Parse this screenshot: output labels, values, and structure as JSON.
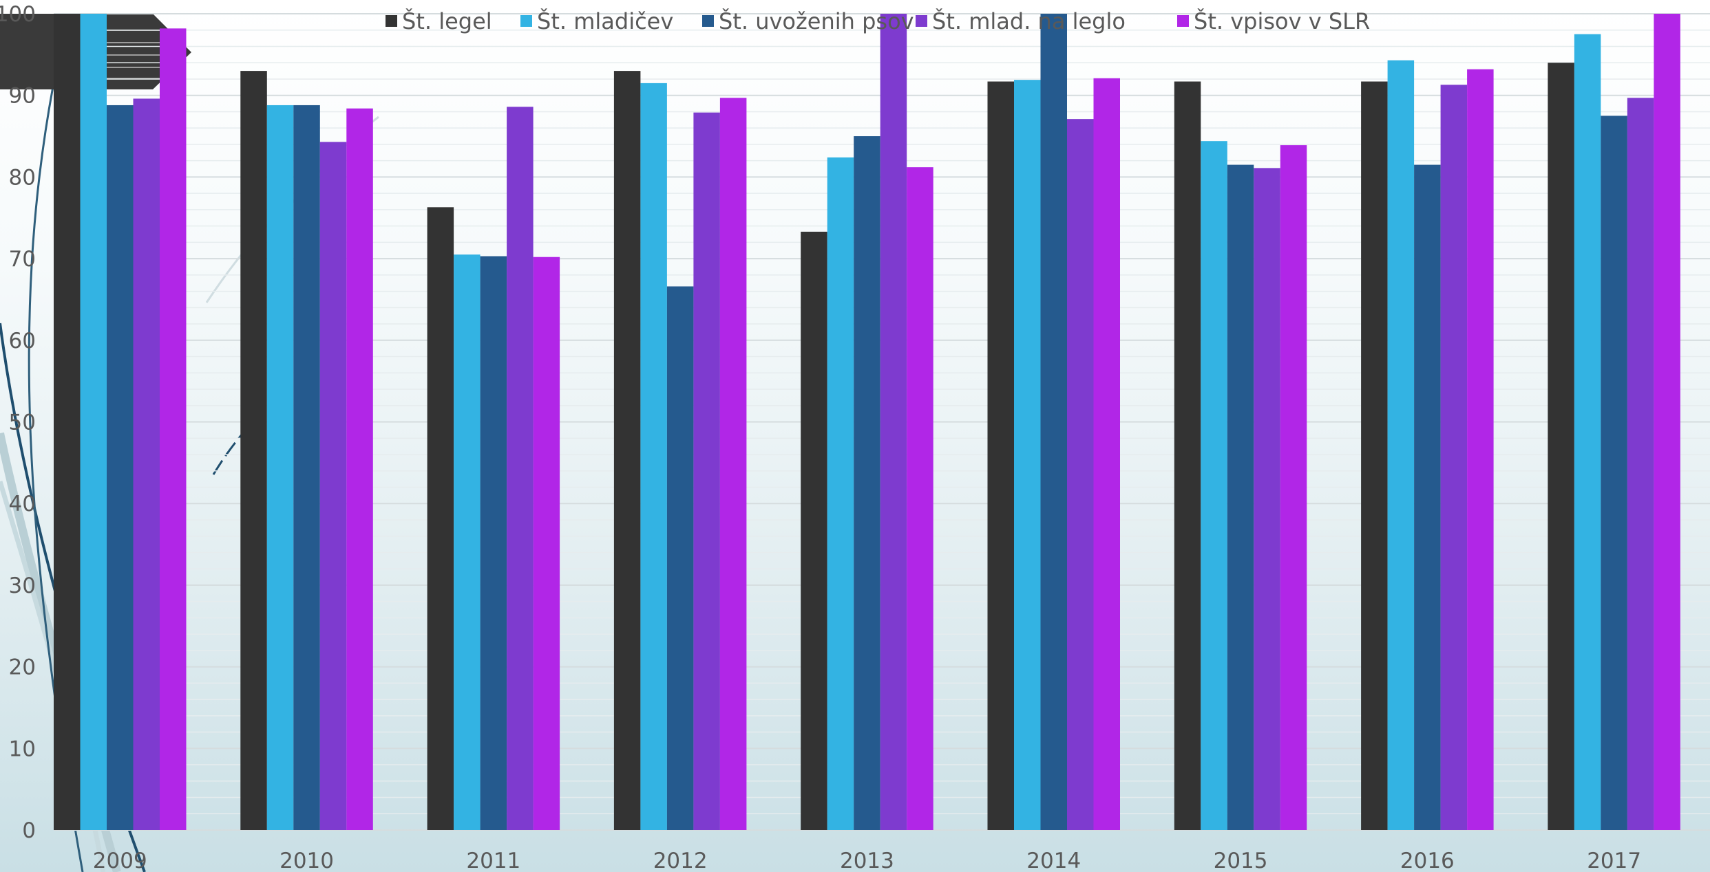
{
  "chart_data": {
    "type": "bar",
    "categories": [
      "2009",
      "2010",
      "2011",
      "2012",
      "2013",
      "2014",
      "2015",
      "2016",
      "2017"
    ],
    "series": [
      {
        "name": "Št. legel",
        "color": "#333333",
        "values": [
          100,
          93,
          76.3,
          93,
          73.3,
          91.7,
          91.7,
          91.7,
          94
        ]
      },
      {
        "name": "Št. mladičev",
        "color": "#33b3e3",
        "values": [
          100,
          88.8,
          70.5,
          91.5,
          82.4,
          91.9,
          84.4,
          94.3,
          97.5
        ]
      },
      {
        "name": "Št. uvoženih psov",
        "color": "#255a8e",
        "values": [
          88.8,
          88.8,
          70.3,
          66.6,
          85,
          100,
          81.5,
          81.5,
          87.5
        ]
      },
      {
        "name": "Št. mlad. na leglo",
        "color": "#7e3bcf",
        "values": [
          89.6,
          84.3,
          88.6,
          87.9,
          100,
          87.1,
          81.1,
          91.3,
          89.7
        ]
      },
      {
        "name": "Št. vpisov v SLR",
        "color": "#b126e7",
        "values": [
          98.2,
          88.4,
          70.2,
          89.7,
          81.2,
          92.1,
          83.9,
          93.2,
          100
        ]
      }
    ],
    "ylim": [
      0,
      100
    ],
    "yticks": [
      0,
      10,
      20,
      30,
      40,
      50,
      60,
      70,
      80,
      90,
      100
    ],
    "y_tick_labels": [
      "0",
      "10",
      "20",
      "30",
      "40",
      "50",
      "60",
      "70",
      "80",
      "90",
      "100"
    ],
    "grid": true,
    "legend_position": "top",
    "xlabel": "",
    "ylabel": "",
    "title": ""
  }
}
